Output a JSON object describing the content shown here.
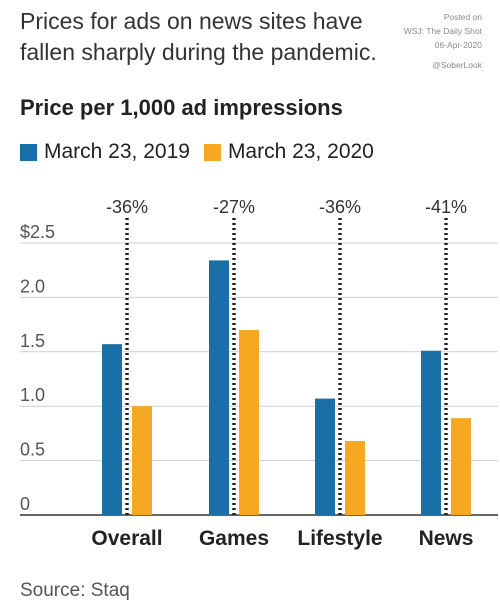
{
  "headline": "Prices for ads on news sites have fallen sharply during the pandemic.",
  "watermark": {
    "line1": "Posted on",
    "line2": "WSJ: The Daily Shot",
    "line3": "06-Apr-2020",
    "handle": "@SoberLook"
  },
  "source": "Source: Staq",
  "colors": {
    "series_2019": "#1a6fa6",
    "series_2020": "#f7a823",
    "grid": "#cfcfcf",
    "axis": "#333333"
  },
  "chart_data": {
    "type": "bar",
    "title": "Price per 1,000 ad impressions",
    "categories": [
      "Overall",
      "Games",
      "Lifestyle",
      "News"
    ],
    "series": [
      {
        "name": "March 23, 2019",
        "values": [
          1.57,
          2.34,
          1.07,
          1.51
        ]
      },
      {
        "name": "March 23, 2020",
        "values": [
          1.0,
          1.7,
          0.68,
          0.89
        ]
      }
    ],
    "changes": [
      "-36%",
      "-27%",
      "-36%",
      "-41%"
    ],
    "ylim": [
      0,
      2.5
    ],
    "yticks": [
      {
        "value": 0,
        "label": "0"
      },
      {
        "value": 0.5,
        "label": "0.5"
      },
      {
        "value": 1.0,
        "label": "1.0"
      },
      {
        "value": 1.5,
        "label": "1.5"
      },
      {
        "value": 2.0,
        "label": "2.0"
      },
      {
        "value": 2.5,
        "label": "$2.5"
      }
    ],
    "grid": true,
    "legend_position": "top-left"
  }
}
